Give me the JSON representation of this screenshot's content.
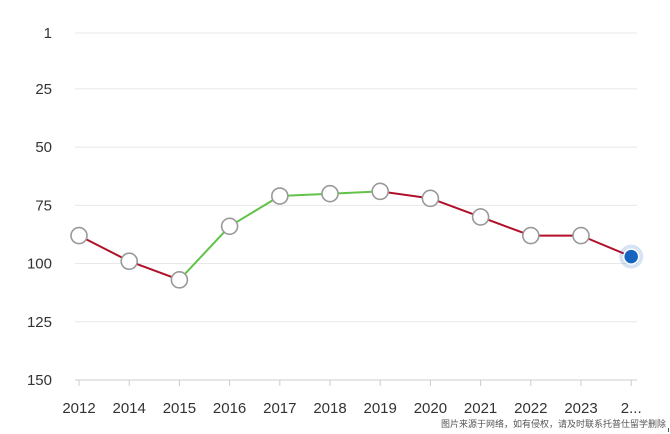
{
  "chart_data": {
    "type": "line",
    "title": "",
    "xlabel": "",
    "ylabel": "",
    "y_inverted": true,
    "ylim": [
      1,
      150
    ],
    "y_ticks": [
      1,
      25,
      50,
      75,
      100,
      125,
      150
    ],
    "categories": [
      "2012",
      "2014",
      "2015",
      "2016",
      "2017",
      "2018",
      "2019",
      "2020",
      "2021",
      "2022",
      "2023",
      "2..."
    ],
    "values": [
      88,
      99,
      107,
      84,
      71,
      70,
      69,
      72,
      80,
      88,
      88,
      97
    ],
    "grid": true,
    "colors": {
      "worsening": "#b0102a",
      "improving": "#62c24a",
      "marker_fill": "#ffffff",
      "marker_stroke": "#999999",
      "latest_marker": "#1565c0",
      "grid": "#e8e8e8",
      "axis": "#cccccc"
    }
  },
  "watermark": "图片来源于网络，如有侵权，请及时联系托普仕留学删除"
}
